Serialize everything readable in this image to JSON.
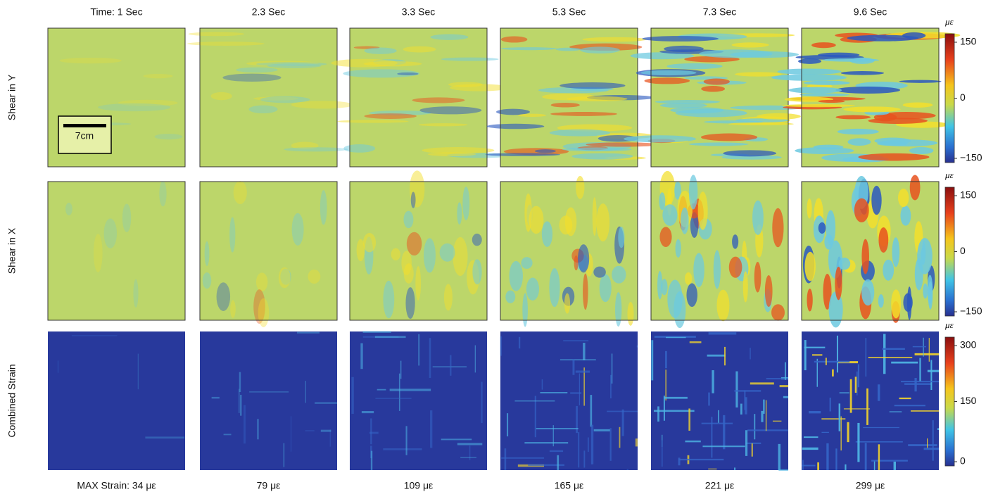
{
  "columns": [
    "Time: 1 Sec",
    "2.3 Sec",
    "3.3 Sec",
    "5.3 Sec",
    "7.3 Sec",
    "9.6 Sec"
  ],
  "rows": [
    {
      "label": "Shear in Y",
      "colorbar": {
        "unit": "με",
        "ticks": [
          "150",
          "0",
          "−150"
        ]
      }
    },
    {
      "label": "Shear in X",
      "colorbar": {
        "unit": "με",
        "ticks": [
          "150",
          "0",
          "−150"
        ]
      }
    },
    {
      "label": "Combined Strain",
      "colorbar": {
        "unit": "με",
        "ticks": [
          "300",
          "150",
          "0"
        ]
      }
    }
  ],
  "max_strain": [
    "MAX Strain: 34 με",
    "79 με",
    "109 με",
    "165 με",
    "221 με",
    "299 με"
  ],
  "scale_bar": "7cm"
}
